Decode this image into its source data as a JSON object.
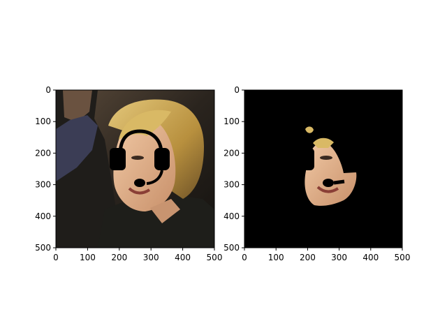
{
  "chart_data": [
    {
      "type": "image",
      "title": "",
      "xlabel": "",
      "ylabel": "",
      "xlim": [
        0,
        500
      ],
      "ylim": [
        500,
        0
      ],
      "y_inverted": true,
      "x_ticks": [
        0,
        100,
        200,
        300,
        400,
        500
      ],
      "y_ticks": [
        0,
        100,
        200,
        300,
        400,
        500
      ],
      "x_tick_labels": [
        "0",
        "100",
        "200",
        "300",
        "400",
        "500"
      ],
      "y_tick_labels": [
        "0",
        "100",
        "200",
        "300",
        "400",
        "500"
      ],
      "image_content": "photo of smiling blonde woman with cartoon headset drawn on (black)",
      "grid": false
    },
    {
      "type": "image",
      "title": "",
      "xlabel": "",
      "ylabel": "",
      "xlim": [
        0,
        500
      ],
      "ylim": [
        500,
        0
      ],
      "y_inverted": true,
      "x_ticks": [
        0,
        100,
        200,
        300,
        400,
        500
      ],
      "y_ticks": [
        0,
        100,
        200,
        300,
        400,
        500
      ],
      "x_tick_labels": [
        "0",
        "100",
        "200",
        "300",
        "400",
        "500"
      ],
      "y_tick_labels": [
        "0",
        "100",
        "200",
        "300",
        "400",
        "500"
      ],
      "image_content": "segmented face region on black background",
      "grid": false
    }
  ],
  "colors": {
    "axis": "#000000",
    "background": "#ffffff",
    "mask_background": "#000000",
    "headset": "#000000",
    "skin": "#e6b48c",
    "hair": "#c9a24a",
    "clothing": "#1e1e1a"
  }
}
